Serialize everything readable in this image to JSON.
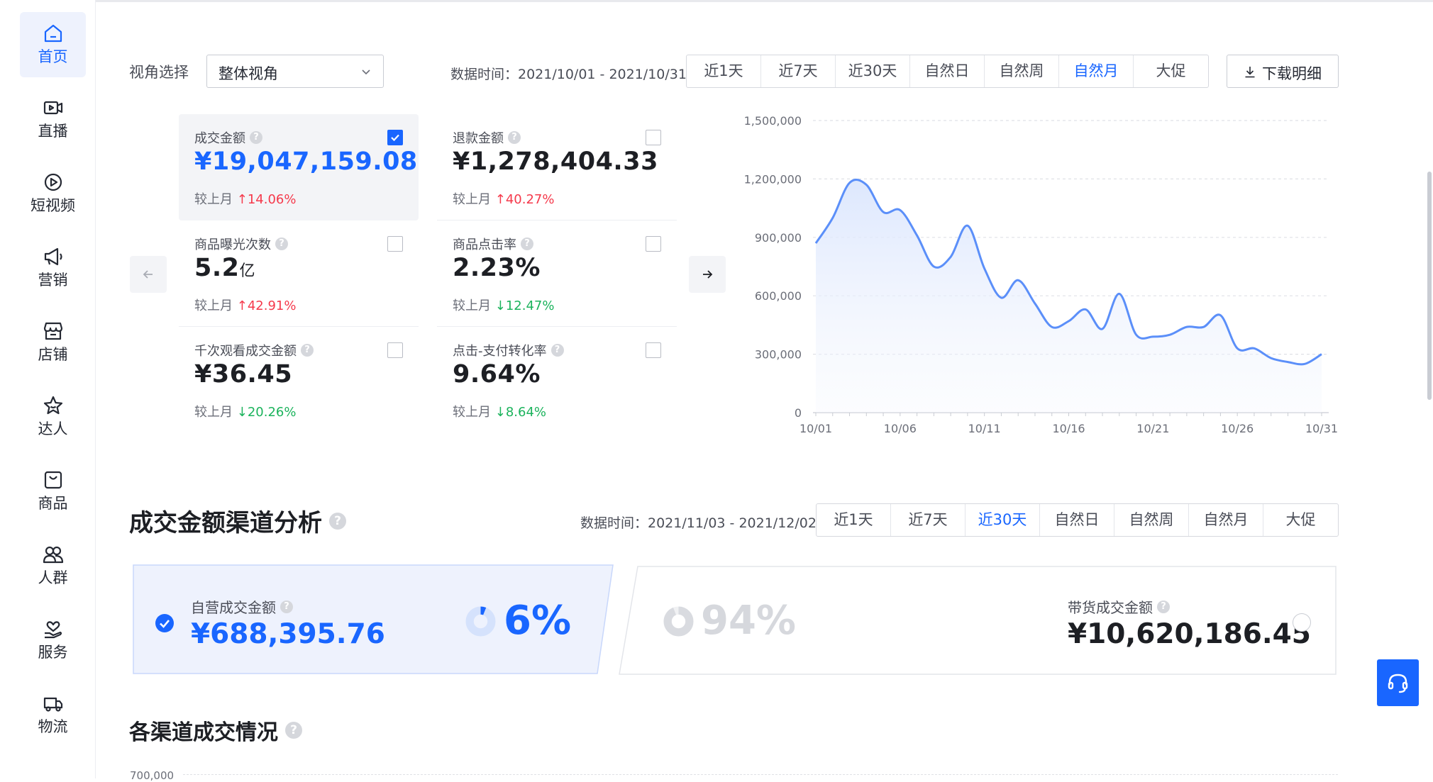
{
  "sidebar": {
    "items": [
      {
        "label": "首页",
        "icon": "home-icon",
        "active": true
      },
      {
        "label": "直播",
        "icon": "live-icon"
      },
      {
        "label": "短视频",
        "icon": "video-icon"
      },
      {
        "label": "营销",
        "icon": "megaphone-icon"
      },
      {
        "label": "店铺",
        "icon": "store-icon"
      },
      {
        "label": "达人",
        "icon": "star-icon"
      },
      {
        "label": "商品",
        "icon": "bag-icon"
      },
      {
        "label": "人群",
        "icon": "people-icon"
      },
      {
        "label": "服务",
        "icon": "service-icon"
      },
      {
        "label": "物流",
        "icon": "truck-icon"
      }
    ]
  },
  "overview": {
    "view_label": "视角选择",
    "view_select": "整体视角",
    "data_time": "数据时间：2021/10/01 - 2021/10/31",
    "ranges": [
      "近1天",
      "近7天",
      "近30天",
      "自然日",
      "自然周",
      "自然月",
      "大促"
    ],
    "selected_range": "自然月",
    "download_label": "下载明细",
    "metrics": [
      {
        "name": "成交金额",
        "value": "¥19,047,159.08",
        "unit": "",
        "compare_label": "较上月",
        "direction": "up",
        "change": "14.06%",
        "checked": true
      },
      {
        "name": "退款金额",
        "value": "¥1,278,404.33",
        "unit": "",
        "compare_label": "较上月",
        "direction": "up",
        "change": "40.27%",
        "checked": false
      },
      {
        "name": "商品曝光次数",
        "value": "5.2",
        "unit": "亿",
        "compare_label": "较上月",
        "direction": "up",
        "change": "42.91%",
        "checked": false
      },
      {
        "name": "商品点击率",
        "value": "2.23%",
        "unit": "",
        "compare_label": "较上月",
        "direction": "down",
        "change": "12.47%",
        "checked": false
      },
      {
        "name": "千次观看成交金额",
        "value": "¥36.45",
        "unit": "",
        "compare_label": "较上月",
        "direction": "down",
        "change": "20.26%",
        "checked": false
      },
      {
        "name": "点击-支付转化率",
        "value": "9.64%",
        "unit": "",
        "compare_label": "较上月",
        "direction": "down",
        "change": "8.64%",
        "checked": false
      }
    ]
  },
  "chart_data": {
    "type": "area",
    "x": [
      "10/01",
      "10/02",
      "10/03",
      "10/04",
      "10/05",
      "10/06",
      "10/07",
      "10/08",
      "10/09",
      "10/10",
      "10/11",
      "10/12",
      "10/13",
      "10/14",
      "10/15",
      "10/16",
      "10/17",
      "10/18",
      "10/19",
      "10/20",
      "10/21",
      "10/22",
      "10/23",
      "10/24",
      "10/25",
      "10/26",
      "10/27",
      "10/28",
      "10/29",
      "10/30",
      "10/31"
    ],
    "x_ticks": [
      "10/01",
      "10/06",
      "10/11",
      "10/16",
      "10/21",
      "10/26",
      "10/31"
    ],
    "y_ticks": [
      "0",
      "300,000",
      "600,000",
      "900,000",
      "1,200,000",
      "1,500,000"
    ],
    "ylim": [
      0,
      1500000
    ],
    "series": [
      {
        "values": [
          870000,
          1000000,
          1180000,
          1170000,
          1030000,
          1040000,
          910000,
          750000,
          800000,
          960000,
          740000,
          590000,
          680000,
          560000,
          440000,
          470000,
          530000,
          430000,
          610000,
          400000,
          390000,
          400000,
          440000,
          440000,
          500000,
          330000,
          330000,
          280000,
          260000,
          250000,
          300000
        ]
      }
    ],
    "color": "#5b8ff9",
    "grid": true
  },
  "channel": {
    "title": "成交金额渠道分析",
    "data_time": "数据时间：2021/11/03 - 2021/12/02",
    "ranges": [
      "近1天",
      "近7天",
      "近30天",
      "自然日",
      "自然周",
      "自然月",
      "大促"
    ],
    "selected_range": "近30天",
    "self": {
      "label": "自营成交金额",
      "value": "¥688,395.76",
      "percent": "6%",
      "share": 0.06
    },
    "carry": {
      "label": "带货成交金额",
      "value": "¥10,620,186.45",
      "percent": "94%",
      "share": 0.94
    }
  },
  "channels_section": {
    "title": "各渠道成交情况",
    "first_tick": "700,000"
  },
  "colors": {
    "accent": "#1966ff",
    "up": "#f5394b",
    "down": "#1bb35c"
  }
}
